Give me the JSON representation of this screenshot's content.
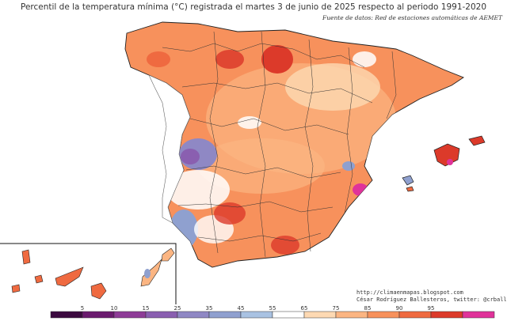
{
  "title": "Percentil de la temperatura mínima (°C) registrada el martes 3 de junio de 2025 respecto al periodo 1991-2020",
  "source": "Fuente de datos: Red de estaciones automáticas de AEMET",
  "credits": {
    "website": "http://climaenmapas.blogspot.com",
    "author": "César Rodríguez Ballesteros, twitter: @crballesteros"
  },
  "legend": {
    "ticks": [
      "5",
      "10",
      "15",
      "25",
      "35",
      "45",
      "55",
      "65",
      "75",
      "85",
      "90",
      "95"
    ],
    "colors": [
      "#3b0a3f",
      "#6a1b6e",
      "#8e3c97",
      "#8a5fb0",
      "#8f88c4",
      "#8fa0cf",
      "#a9c2e2",
      "#ffffff",
      "#fdd9b3",
      "#fbb582",
      "#f7915c",
      "#ef6a40",
      "#dc3a2a",
      "#e0339a"
    ]
  },
  "colors": {
    "warm_high": "#ef6a40",
    "warm_mid": "#f7915c",
    "warm_low": "#fbb582",
    "neutral": "#ffffff",
    "cold_low": "#a9c2e2",
    "cold_mid": "#8f88c4",
    "extreme_high": "#e0339a"
  }
}
